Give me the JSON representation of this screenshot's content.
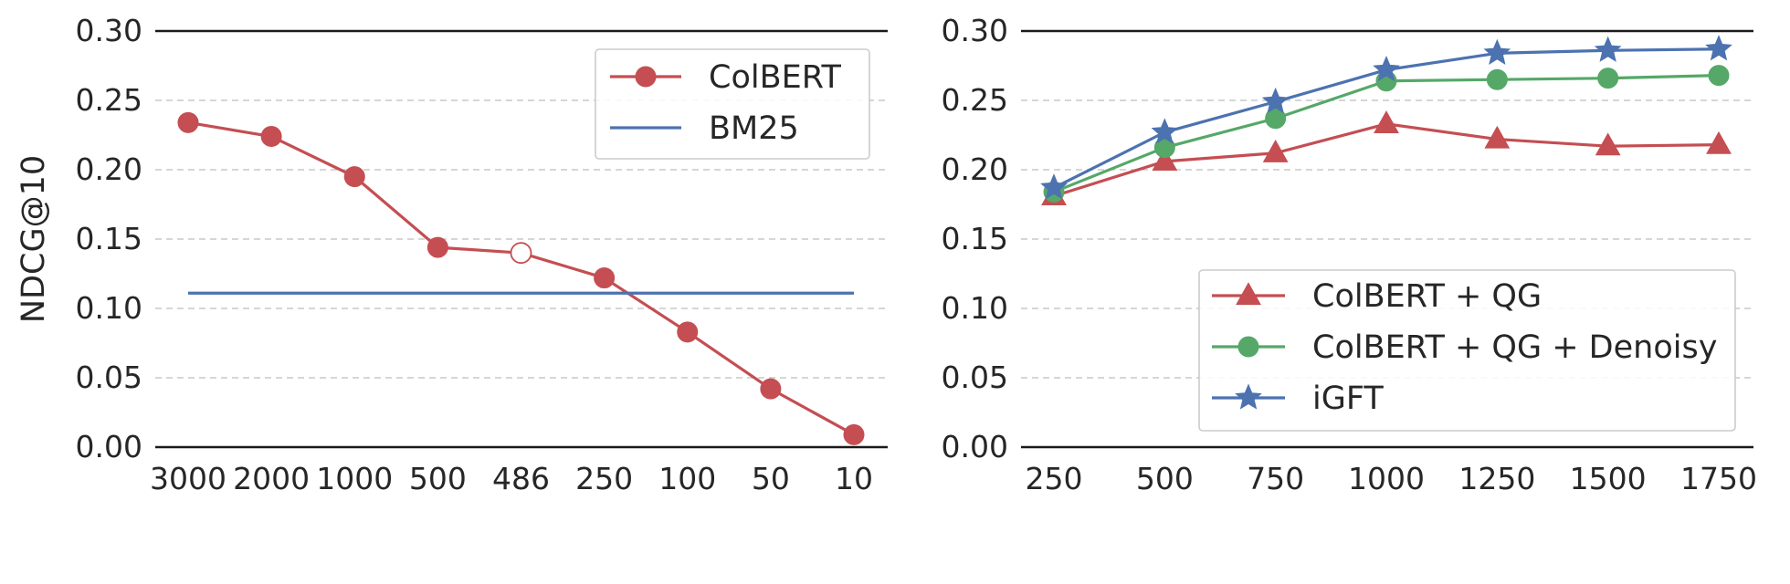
{
  "colors": {
    "red": "#c44e52",
    "green": "#55a868",
    "blue": "#4c72b0"
  },
  "chart_data": [
    {
      "type": "line",
      "ylabel": "NDCG@10",
      "xlabel": "",
      "title": "",
      "ylim": [
        0,
        0.3
      ],
      "y_ticks": [
        "0.00",
        "0.05",
        "0.10",
        "0.15",
        "0.20",
        "0.25",
        "0.30"
      ],
      "categories": [
        "3000",
        "2000",
        "1000",
        "500",
        "486",
        "250",
        "100",
        "50",
        "10"
      ],
      "grid": "horizontal dashed",
      "legend_position": "top-right",
      "series": [
        {
          "name": "ColBERT",
          "color": "red",
          "marker": "circle",
          "values": [
            0.234,
            0.224,
            0.195,
            0.144,
            0.14,
            0.122,
            0.083,
            0.042,
            0.009
          ],
          "hollow_marker_indices": [
            4
          ]
        },
        {
          "name": "BM25",
          "color": "blue",
          "marker": "none",
          "values": [
            0.111,
            0.111,
            0.111,
            0.111,
            0.111,
            0.111,
            0.111,
            0.111,
            0.111
          ]
        }
      ]
    },
    {
      "type": "line",
      "ylabel": "",
      "xlabel": "",
      "title": "",
      "ylim": [
        0,
        0.3
      ],
      "y_ticks": [
        "0.00",
        "0.05",
        "0.10",
        "0.15",
        "0.20",
        "0.25",
        "0.30"
      ],
      "categories": [
        "250",
        "500",
        "750",
        "1000",
        "1250",
        "1500",
        "1750"
      ],
      "grid": "horizontal dashed",
      "legend_position": "lower-right",
      "series": [
        {
          "name": "ColBERT + QG",
          "color": "red",
          "marker": "triangle",
          "values": [
            0.181,
            0.206,
            0.212,
            0.233,
            0.222,
            0.217,
            0.218
          ]
        },
        {
          "name": "ColBERT + QG + Denoisy",
          "color": "green",
          "marker": "circle",
          "values": [
            0.184,
            0.216,
            0.237,
            0.264,
            0.265,
            0.266,
            0.268
          ]
        },
        {
          "name": "iGFT",
          "color": "blue",
          "marker": "star",
          "values": [
            0.187,
            0.227,
            0.249,
            0.272,
            0.284,
            0.286,
            0.287
          ]
        }
      ]
    }
  ]
}
